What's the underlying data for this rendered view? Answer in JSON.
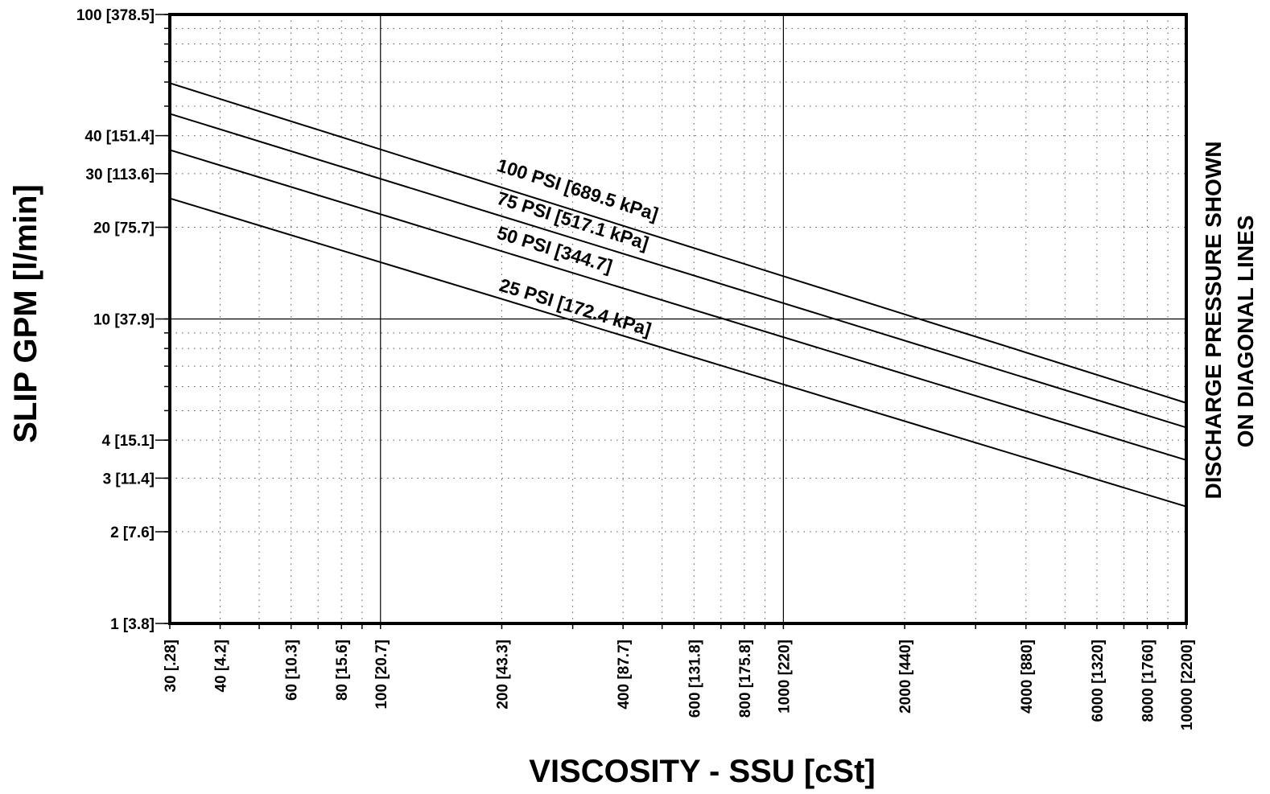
{
  "chart_data": {
    "type": "line",
    "x_scale": "log",
    "y_scale": "log",
    "xlim": [
      30,
      10000
    ],
    "ylim": [
      1,
      100
    ],
    "xlabel": "VISCOSITY - SSU [cSt]",
    "ylabel": "SLIP GPM [l/min]",
    "side_label_lines": [
      "DISCHARGE PRESSURE SHOWN",
      "ON DIAGONAL LINES"
    ],
    "grid": true,
    "x_ticks": [
      {
        "value": 30,
        "label": "30 [.28]"
      },
      {
        "value": 40,
        "label": "40 [4.2]"
      },
      {
        "value": 60,
        "label": "60 [10.3]"
      },
      {
        "value": 80,
        "label": "80 [15.6]"
      },
      {
        "value": 100,
        "label": "100 [20.7]"
      },
      {
        "value": 200,
        "label": "200 [43.3]"
      },
      {
        "value": 400,
        "label": "400 [87.7]"
      },
      {
        "value": 600,
        "label": "600 [131.8]"
      },
      {
        "value": 800,
        "label": "800 [175.8]"
      },
      {
        "value": 1000,
        "label": "1000 [220]"
      },
      {
        "value": 2000,
        "label": "2000 [440]"
      },
      {
        "value": 4000,
        "label": "4000 [880]"
      },
      {
        "value": 6000,
        "label": "6000 [1320]"
      },
      {
        "value": 8000,
        "label": "8000 [1760]"
      },
      {
        "value": 10000,
        "label": "10000 [2200]"
      }
    ],
    "y_ticks": [
      {
        "value": 100,
        "label": "100 [378.5]"
      },
      {
        "value": 40,
        "label": "40 [151.4]"
      },
      {
        "value": 30,
        "label": "30 [113.6]"
      },
      {
        "value": 20,
        "label": "20 [75.7]"
      },
      {
        "value": 10,
        "label": "10 [37.9]"
      },
      {
        "value": 4,
        "label": "4 [15.1]"
      },
      {
        "value": 3,
        "label": "3 [11.4]"
      },
      {
        "value": 2,
        "label": "2 [7.6]"
      },
      {
        "value": 1,
        "label": "1 [3.8]"
      }
    ],
    "series": [
      {
        "name": "100 PSI [689.5 kPa]",
        "x": [
          30,
          10000
        ],
        "y": [
          59.5,
          5.3
        ]
      },
      {
        "name": "75 PSI [517.1 kPa]",
        "x": [
          30,
          10000
        ],
        "y": [
          47.2,
          4.4
        ]
      },
      {
        "name": "50 PSI [344.7]",
        "x": [
          30,
          10000
        ],
        "y": [
          35.9,
          3.44
        ]
      },
      {
        "name": "25 PSI [172.4 kPa]",
        "x": [
          30,
          10000
        ],
        "y": [
          24.9,
          2.42
        ]
      }
    ]
  }
}
